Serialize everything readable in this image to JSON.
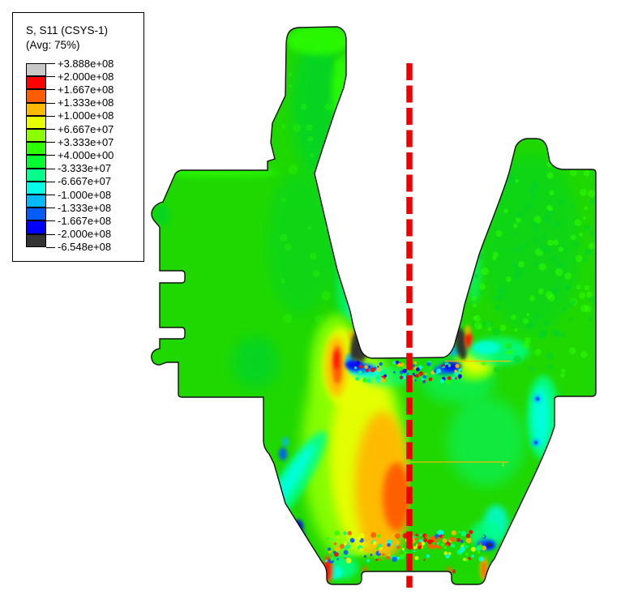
{
  "legend": {
    "title": "S, S11 (CSYS-1)",
    "subtitle": "(Avg: 75%)",
    "boundaries": [
      "+3.888e+08",
      "+2.000e+08",
      "+1.667e+08",
      "+1.333e+08",
      "+1.000e+08",
      "+6.667e+07",
      "+3.333e+07",
      "+4.000e+00",
      "-3.333e+07",
      "-6.667e+07",
      "-1.000e+08",
      "-1.333e+08",
      "-1.667e+08",
      "-2.000e+08",
      "-6.548e+08"
    ],
    "band_colors": [
      "#C8C8C8",
      "#FF0000",
      "#FF5C00",
      "#FFB900",
      "#E8FF00",
      "#8BFF00",
      "#2EFF00",
      "#00FF2E",
      "#00FF8B",
      "#00FFE8",
      "#00B9FF",
      "#005CFF",
      "#0000FF",
      "#333333"
    ]
  },
  "chart_data": {
    "type": "heatmap",
    "title": "S, S11 (CSYS-1)",
    "subtitle": "(Avg: 75%)",
    "field": "S11 stress contour",
    "max": 388800000,
    "min": -654800000,
    "levels": [
      388800000,
      200000000,
      166700000,
      133300000,
      100000000,
      66670000,
      33330000,
      4,
      -33330000,
      -66670000,
      -100000000,
      -133300000,
      -166700000,
      -200000000,
      -654800000
    ],
    "band_colors": [
      "#C8C8C8",
      "#FF0000",
      "#FF5C00",
      "#FFB900",
      "#E8FF00",
      "#8BFF00",
      "#2EFF00",
      "#00FF2E",
      "#00FF8B",
      "#00FFE8",
      "#00B9FF",
      "#005CFF",
      "#0000FF",
      "#333333"
    ],
    "legend_position": "top-left",
    "notes": "FEA contour plot of a forked part; compressive (dark/blue) zones at slot bottom corners, tensile (orange/red) column left of the symmetry line near the base, red dashed vertical symmetry axis."
  },
  "palette": {
    "gray": "#C8C8C8",
    "red": "#FF0000",
    "orange_red": "#FF5C00",
    "orange": "#FFB900",
    "yellow": "#E8FF00",
    "chartreuse": "#8BFF00",
    "green_yellow": "#2EFF00",
    "green": "#00FF2E",
    "spring_green": "#00FF8B",
    "cyan": "#00FFE8",
    "sky_blue": "#00B9FF",
    "blue_mid": "#005CFF",
    "blue": "#0000FF",
    "charcoal": "#333333",
    "body_green": "#1FD800",
    "body_green_alt": "#00D42B",
    "centerline_red": "#EE0000",
    "outline": "#111111"
  },
  "centerline": {
    "color": "#EE0000",
    "style": "dashed"
  },
  "annotations": {
    "contour_line_mark": "z"
  }
}
